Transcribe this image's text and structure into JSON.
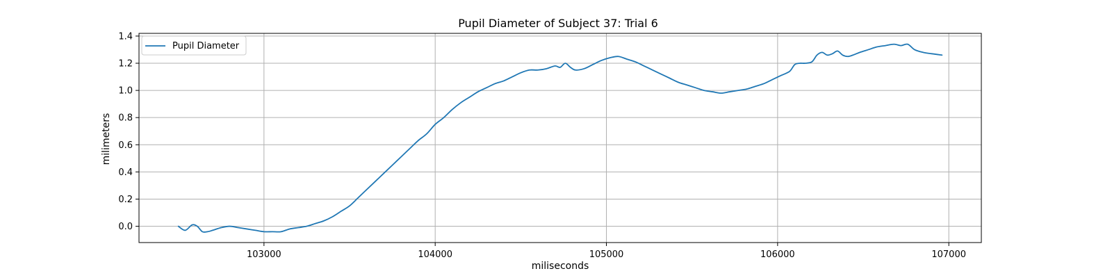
{
  "chart_data": {
    "type": "line",
    "title": "Pupil Diameter of Subject 37: Trial 6",
    "xlabel": "miliseconds",
    "ylabel": "milimeters",
    "xlim": [
      102270,
      107190
    ],
    "ylim": [
      -0.12,
      1.42
    ],
    "xticks": [
      103000,
      104000,
      105000,
      106000,
      107000
    ],
    "xtick_labels": [
      "103000",
      "104000",
      "105000",
      "106000",
      "107000"
    ],
    "yticks": [
      0.0,
      0.2,
      0.4,
      0.6,
      0.8,
      1.0,
      1.2,
      1.4
    ],
    "ytick_labels": [
      "0.0",
      "0.2",
      "0.4",
      "0.6",
      "0.8",
      "1.0",
      "1.2",
      "1.4"
    ],
    "grid": true,
    "legend_position": "upper-left",
    "colors": {
      "series": "#1f77b4",
      "grid": "#b0b0b0",
      "axes": "#000000"
    },
    "series": [
      {
        "name": "Pupil Diameter",
        "x": [
          102500,
          102540,
          102580,
          102610,
          102640,
          102670,
          102700,
          102750,
          102800,
          102850,
          102900,
          102950,
          103000,
          103050,
          103100,
          103150,
          103200,
          103250,
          103300,
          103350,
          103400,
          103450,
          103500,
          103550,
          103600,
          103650,
          103700,
          103750,
          103800,
          103850,
          103900,
          103950,
          104000,
          104050,
          104100,
          104150,
          104200,
          104250,
          104300,
          104350,
          104400,
          104450,
          104500,
          104550,
          104600,
          104650,
          104700,
          104730,
          104760,
          104790,
          104820,
          104870,
          104920,
          104970,
          105020,
          105070,
          105120,
          105170,
          105220,
          105270,
          105320,
          105370,
          105420,
          105470,
          105520,
          105570,
          105620,
          105670,
          105720,
          105770,
          105820,
          105870,
          105920,
          105970,
          106020,
          106070,
          106100,
          106130,
          106160,
          106200,
          106230,
          106260,
          106290,
          106320,
          106350,
          106380,
          106410,
          106440,
          106480,
          106530,
          106580,
          106630,
          106680,
          106720,
          106760,
          106800,
          106850,
          106900,
          106960
        ],
        "y": [
          0.0,
          -0.03,
          0.01,
          0.0,
          -0.04,
          -0.04,
          -0.03,
          -0.01,
          0.0,
          -0.01,
          -0.02,
          -0.03,
          -0.04,
          -0.04,
          -0.04,
          -0.02,
          -0.01,
          0.0,
          0.02,
          0.04,
          0.07,
          0.11,
          0.15,
          0.21,
          0.27,
          0.33,
          0.39,
          0.45,
          0.51,
          0.57,
          0.63,
          0.68,
          0.75,
          0.8,
          0.86,
          0.91,
          0.95,
          0.99,
          1.02,
          1.05,
          1.07,
          1.1,
          1.13,
          1.15,
          1.15,
          1.16,
          1.18,
          1.17,
          1.2,
          1.17,
          1.15,
          1.16,
          1.19,
          1.22,
          1.24,
          1.25,
          1.23,
          1.21,
          1.18,
          1.15,
          1.12,
          1.09,
          1.06,
          1.04,
          1.02,
          1.0,
          0.99,
          0.98,
          0.99,
          1.0,
          1.01,
          1.03,
          1.05,
          1.08,
          1.11,
          1.14,
          1.19,
          1.2,
          1.2,
          1.21,
          1.26,
          1.28,
          1.26,
          1.27,
          1.29,
          1.26,
          1.25,
          1.26,
          1.28,
          1.3,
          1.32,
          1.33,
          1.34,
          1.33,
          1.34,
          1.3,
          1.28,
          1.27,
          1.26
        ]
      }
    ]
  }
}
